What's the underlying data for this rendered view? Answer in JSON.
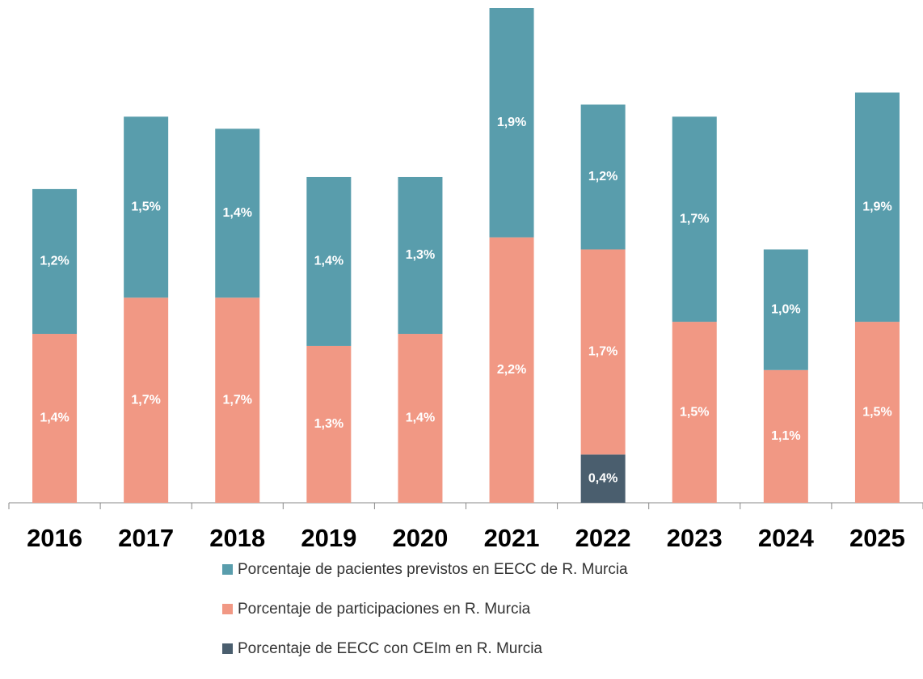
{
  "chart_data": {
    "type": "bar",
    "stacked": true,
    "categories": [
      "2016",
      "2017",
      "2018",
      "2019",
      "2020",
      "2021",
      "2022",
      "2023",
      "2024",
      "2025"
    ],
    "series": [
      {
        "name": "Porcentaje de pacientes previstos en EECC de R. Murcia",
        "color": "#599dac",
        "values": [
          1.2,
          1.5,
          1.4,
          1.4,
          1.3,
          1.9,
          1.2,
          1.7,
          1.0,
          1.9
        ],
        "value_labels": [
          "1,2%",
          "1,5%",
          "1,4%",
          "1,4%",
          "1,3%",
          "1,9%",
          "1,2%",
          "1,7%",
          "1,0%",
          "1,9%"
        ]
      },
      {
        "name": "Porcentaje de participaciones en R. Murcia",
        "color": "#f19884",
        "values": [
          1.4,
          1.7,
          1.7,
          1.3,
          1.4,
          2.2,
          1.7,
          1.5,
          1.1,
          1.5
        ],
        "value_labels": [
          "1,4%",
          "1,7%",
          "1,7%",
          "1,3%",
          "1,4%",
          "2,2%",
          "1,7%",
          "1,5%",
          "1,1%",
          "1,5%"
        ]
      },
      {
        "name": "Porcentaje de EECC con CEIm en R. Murcia",
        "color": "#4a5e6e",
        "values": [
          null,
          null,
          null,
          null,
          null,
          null,
          0.4,
          null,
          null,
          null
        ],
        "value_labels": [
          null,
          null,
          null,
          null,
          null,
          null,
          "0,4%",
          null,
          null,
          null
        ]
      }
    ]
  }
}
